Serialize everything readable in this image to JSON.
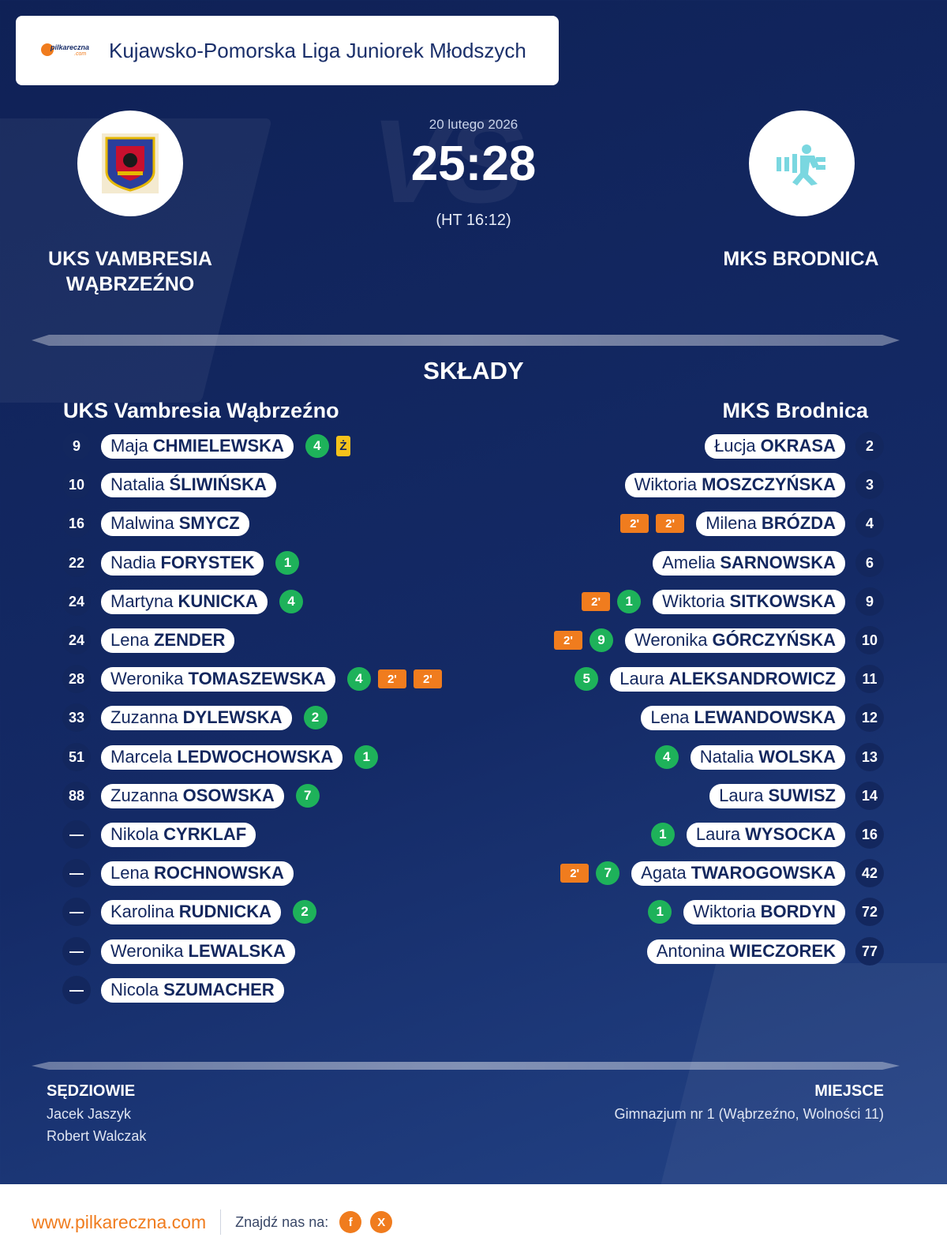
{
  "league": {
    "title": "Kujawsko-Pomorska Liga Juniorek Młodszych"
  },
  "logo": {
    "text": "pilkareczna",
    "suffix": ".com"
  },
  "match": {
    "date": "20 lutego 2026",
    "score": "25:28",
    "half_time": "(HT 16:12)",
    "vs_watermark": "VS"
  },
  "home": {
    "name_line1": "UKS VAMBRESIA",
    "name_line2": "WĄBRZEŹNO",
    "lineup_title": "UKS Vambresia Wąbrzeźno"
  },
  "away": {
    "name": "MKS BRODNICA",
    "lineup_title": "MKS Brodnica"
  },
  "section_title": "SKŁADY",
  "home_players": [
    {
      "num": "9",
      "first": "Maja",
      "last": "CHMIELEWSKA",
      "goals": "4",
      "susp": [],
      "yellow": "Ż"
    },
    {
      "num": "10",
      "first": "Natalia",
      "last": "ŚLIWIŃSKA",
      "goals": "",
      "susp": [],
      "yellow": ""
    },
    {
      "num": "16",
      "first": "Malwina",
      "last": "SMYCZ",
      "goals": "",
      "susp": [],
      "yellow": ""
    },
    {
      "num": "22",
      "first": "Nadia",
      "last": "FORYSTEK",
      "goals": "1",
      "susp": [],
      "yellow": ""
    },
    {
      "num": "24",
      "first": "Martyna",
      "last": "KUNICKA",
      "goals": "4",
      "susp": [],
      "yellow": ""
    },
    {
      "num": "24",
      "first": "Lena",
      "last": "ZENDER",
      "goals": "",
      "susp": [],
      "yellow": ""
    },
    {
      "num": "28",
      "first": "Weronika",
      "last": "TOMASZEWSKA",
      "goals": "4",
      "susp": [
        "2'",
        "2'"
      ],
      "yellow": ""
    },
    {
      "num": "33",
      "first": "Zuzanna",
      "last": "DYLEWSKA",
      "goals": "2",
      "susp": [],
      "yellow": ""
    },
    {
      "num": "51",
      "first": "Marcela",
      "last": "LEDWOCHOWSKA",
      "goals": "1",
      "susp": [],
      "yellow": ""
    },
    {
      "num": "88",
      "first": "Zuzanna",
      "last": "OSOWSKA",
      "goals": "7",
      "susp": [],
      "yellow": ""
    },
    {
      "num": "—",
      "first": "Nikola",
      "last": "CYRKLAF",
      "goals": "",
      "susp": [],
      "yellow": ""
    },
    {
      "num": "—",
      "first": "Lena",
      "last": "ROCHNOWSKA",
      "goals": "",
      "susp": [],
      "yellow": ""
    },
    {
      "num": "—",
      "first": "Karolina",
      "last": "RUDNICKA",
      "goals": "2",
      "susp": [],
      "yellow": ""
    },
    {
      "num": "—",
      "first": "Weronika",
      "last": "LEWALSKA",
      "goals": "",
      "susp": [],
      "yellow": ""
    },
    {
      "num": "—",
      "first": "Nicola",
      "last": "SZUMACHER",
      "goals": "",
      "susp": [],
      "yellow": ""
    }
  ],
  "away_players": [
    {
      "num": "2",
      "first": "Łucja",
      "last": "OKRASA",
      "goals": "",
      "susp": [],
      "yellow": ""
    },
    {
      "num": "3",
      "first": "Wiktoria",
      "last": "MOSZCZYŃSKA",
      "goals": "",
      "susp": [],
      "yellow": ""
    },
    {
      "num": "4",
      "first": "Milena",
      "last": "BRÓZDA",
      "goals": "",
      "susp": [
        "2'",
        "2'"
      ],
      "yellow": ""
    },
    {
      "num": "6",
      "first": "Amelia",
      "last": "SARNOWSKA",
      "goals": "",
      "susp": [],
      "yellow": ""
    },
    {
      "num": "9",
      "first": "Wiktoria",
      "last": "SITKOWSKA",
      "goals": "1",
      "susp": [
        "2'"
      ],
      "yellow": ""
    },
    {
      "num": "10",
      "first": "Weronika",
      "last": "GÓRCZYŃSKA",
      "goals": "9",
      "susp": [
        "2'"
      ],
      "yellow": ""
    },
    {
      "num": "11",
      "first": "Laura",
      "last": "ALEKSANDROWICZ",
      "goals": "5",
      "susp": [],
      "yellow": ""
    },
    {
      "num": "12",
      "first": "Lena",
      "last": "LEWANDOWSKA",
      "goals": "",
      "susp": [],
      "yellow": ""
    },
    {
      "num": "13",
      "first": "Natalia",
      "last": "WOLSKA",
      "goals": "4",
      "susp": [],
      "yellow": ""
    },
    {
      "num": "14",
      "first": "Laura",
      "last": "SUWISZ",
      "goals": "",
      "susp": [],
      "yellow": ""
    },
    {
      "num": "16",
      "first": "Laura",
      "last": "WYSOCKA",
      "goals": "1",
      "susp": [],
      "yellow": ""
    },
    {
      "num": "42",
      "first": "Agata",
      "last": "TWAROGOWSKA",
      "goals": "7",
      "susp": [
        "2'"
      ],
      "yellow": ""
    },
    {
      "num": "72",
      "first": "Wiktoria",
      "last": "BORDYN",
      "goals": "1",
      "susp": [],
      "yellow": ""
    },
    {
      "num": "77",
      "first": "Antonina",
      "last": "WIECZOREK",
      "goals": "",
      "susp": [],
      "yellow": ""
    }
  ],
  "referees": {
    "title": "SĘDZIOWIE",
    "names": [
      "Jacek Jaszyk",
      "Robert Walczak"
    ]
  },
  "venue": {
    "title": "MIEJSCE",
    "name": "Gimnazjum nr 1 (Wąbrzeźno, Wolności 11)"
  },
  "footer": {
    "url": "www.pilkareczna.com",
    "find_us": "Znajdź nas na:",
    "social": [
      "f",
      "X"
    ]
  },
  "colors": {
    "background": "#142a66",
    "accent": "#f07c1e",
    "goal": "#1eb25a",
    "yellow_card": "#f5c21b",
    "navy": "#13275e"
  },
  "icons": {
    "home_crest": "vambresia-crest-icon",
    "away_crest": "mks-brodnica-crest-icon"
  }
}
